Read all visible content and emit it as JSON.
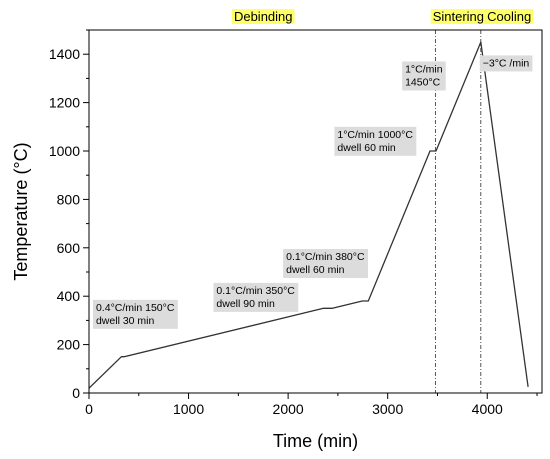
{
  "chart_data": {
    "type": "line",
    "xlabel": "Time (min)",
    "ylabel": "Temperature (°C)",
    "xlim": [
      0,
      4550
    ],
    "ylim": [
      0,
      1500
    ],
    "x_ticks": [
      0,
      1000,
      2000,
      3000,
      4000
    ],
    "y_ticks": [
      0,
      200,
      400,
      600,
      800,
      1000,
      1200,
      1400
    ],
    "grid": false,
    "series": [
      {
        "color": "#333333",
        "points": [
          {
            "x": 0,
            "y": 20
          },
          {
            "x": 325,
            "y": 150
          },
          {
            "x": 355,
            "y": 150
          },
          {
            "x": 2355,
            "y": 350
          },
          {
            "x": 2445,
            "y": 350
          },
          {
            "x": 2745,
            "y": 380
          },
          {
            "x": 2805,
            "y": 380
          },
          {
            "x": 3425,
            "y": 1000
          },
          {
            "x": 3485,
            "y": 1000
          },
          {
            "x": 3935,
            "y": 1450
          },
          {
            "x": 4410,
            "y": 25
          }
        ]
      }
    ],
    "phases": [
      {
        "label": "Debinding",
        "x_center": 1750,
        "highlight": "#ffff66"
      },
      {
        "label": "Sintering",
        "x_center": 3710,
        "highlight": "#ffff66"
      },
      {
        "label": "Cooling",
        "x_center": 4220,
        "highlight": "#ffff66"
      }
    ],
    "phase_boundaries": [
      3480,
      3935
    ],
    "annotations": [
      {
        "lines": [
          "0.4°C/min 150°C",
          "dwell 30 min"
        ],
        "x": 70,
        "y": 385
      },
      {
        "lines": [
          "0.1°C/min 350°C",
          "dwell 90 min"
        ],
        "x": 1280,
        "y": 455
      },
      {
        "lines": [
          "0.1°C/min 380°C",
          "dwell 60 min"
        ],
        "x": 1980,
        "y": 595
      },
      {
        "lines": [
          "1°C/min 1000°C",
          "dwell 60 min"
        ],
        "x": 2495,
        "y": 1100
      },
      {
        "lines": [
          "1°C/min",
          "1450°C"
        ],
        "x": 3175,
        "y": 1370
      },
      {
        "lines": [
          "−3°C /min"
        ],
        "x": 3955,
        "y": 1395
      }
    ]
  }
}
